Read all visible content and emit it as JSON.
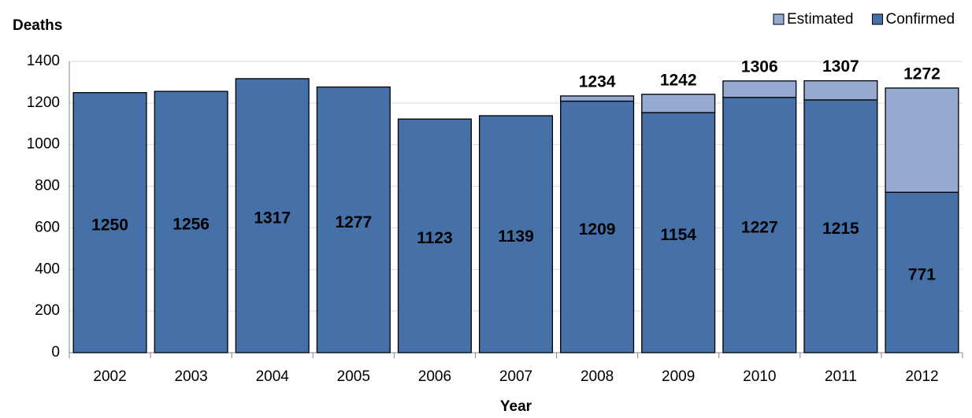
{
  "chart_data": {
    "type": "bar",
    "stacked": true,
    "y_label": "Deaths",
    "x_label": "Year",
    "categories": [
      "2002",
      "2003",
      "2004",
      "2005",
      "2006",
      "2007",
      "2008",
      "2009",
      "2010",
      "2011",
      "2012"
    ],
    "series": [
      {
        "name": "Confirmed",
        "color": "#4570a8",
        "values": [
          1250,
          1256,
          1317,
          1277,
          1123,
          1139,
          1209,
          1154,
          1227,
          1215,
          771
        ]
      },
      {
        "name": "Estimated",
        "color": "#95a9d1",
        "values": [
          null,
          null,
          null,
          null,
          null,
          null,
          25,
          88,
          79,
          92,
          501
        ]
      }
    ],
    "totals": [
      null,
      null,
      null,
      null,
      null,
      null,
      1234,
      1242,
      1306,
      1307,
      1272
    ],
    "ylim": [
      0,
      1400
    ],
    "yticks": [
      0,
      200,
      400,
      600,
      800,
      1000,
      1200,
      1400
    ],
    "grid": true,
    "legend": "top-right"
  }
}
